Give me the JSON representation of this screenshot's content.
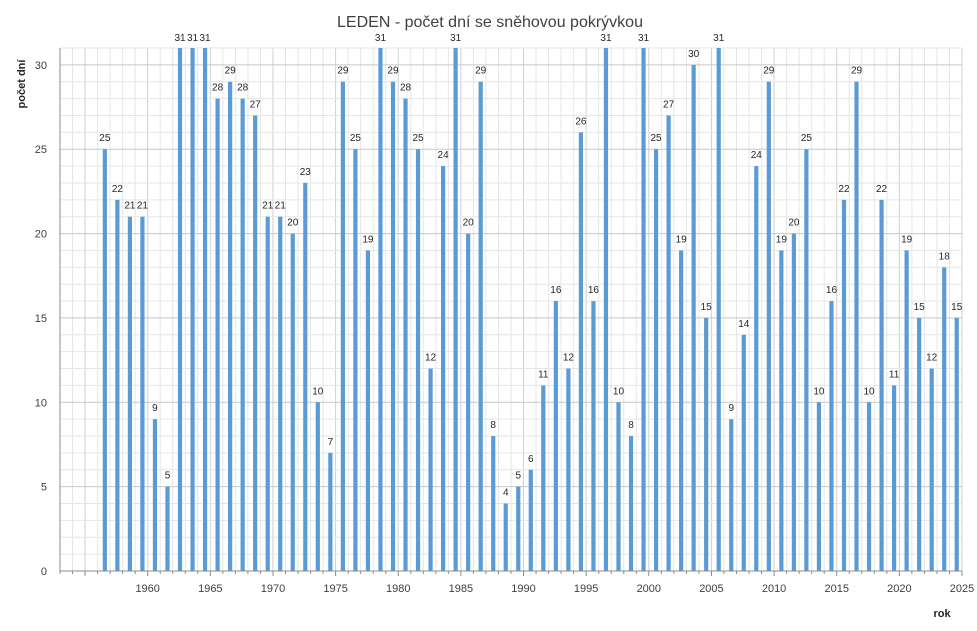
{
  "chart_data": {
    "type": "bar",
    "title": "LEDEN - počet dní se sněhovou pokrývkou",
    "xlabel": "rok",
    "ylabel": "počet dní",
    "ylim": [
      0,
      31
    ],
    "xlim": [
      1953,
      2025
    ],
    "y_ticks": [
      0,
      5,
      10,
      15,
      20,
      25,
      30
    ],
    "x_ticks": [
      1960,
      1965,
      1970,
      1975,
      1980,
      1985,
      1990,
      1995,
      2000,
      2005,
      2010,
      2015,
      2020,
      2025
    ],
    "grid": true,
    "legend": "none",
    "bar_color": "#5b9bd5",
    "series": [
      {
        "points": [
          [
            1957,
            25
          ],
          [
            1958,
            22
          ],
          [
            1959,
            21
          ],
          [
            1960,
            21
          ],
          [
            1961,
            9
          ],
          [
            1962,
            5
          ],
          [
            1963,
            31
          ],
          [
            1964,
            31
          ],
          [
            1965,
            31
          ],
          [
            1966,
            28
          ],
          [
            1967,
            29
          ],
          [
            1968,
            28
          ],
          [
            1969,
            27
          ],
          [
            1970,
            21
          ],
          [
            1971,
            21
          ],
          [
            1972,
            20
          ],
          [
            1973,
            23
          ],
          [
            1974,
            10
          ],
          [
            1975,
            7
          ],
          [
            1976,
            29
          ],
          [
            1977,
            25
          ],
          [
            1978,
            19
          ],
          [
            1979,
            31
          ],
          [
            1980,
            29
          ],
          [
            1981,
            28
          ],
          [
            1982,
            25
          ],
          [
            1983,
            12
          ],
          [
            1984,
            24
          ],
          [
            1985,
            31
          ],
          [
            1986,
            20
          ],
          [
            1987,
            29
          ],
          [
            1988,
            8
          ],
          [
            1989,
            4
          ],
          [
            1990,
            5
          ],
          [
            1991,
            6
          ],
          [
            1992,
            11
          ],
          [
            1993,
            16
          ],
          [
            1994,
            12
          ],
          [
            1995,
            26
          ],
          [
            1996,
            16
          ],
          [
            1997,
            31
          ],
          [
            1998,
            10
          ],
          [
            1999,
            8
          ],
          [
            2000,
            31
          ],
          [
            2001,
            25
          ],
          [
            2002,
            27
          ],
          [
            2003,
            19
          ],
          [
            2004,
            30
          ],
          [
            2005,
            15
          ],
          [
            2006,
            31
          ],
          [
            2007,
            9
          ],
          [
            2008,
            14
          ],
          [
            2009,
            24
          ],
          [
            2010,
            29
          ],
          [
            2011,
            19
          ],
          [
            2012,
            20
          ],
          [
            2013,
            25
          ],
          [
            2014,
            10
          ],
          [
            2015,
            16
          ],
          [
            2016,
            22
          ],
          [
            2017,
            29
          ],
          [
            2018,
            10
          ],
          [
            2019,
            22
          ],
          [
            2020,
            11
          ],
          [
            2021,
            19
          ],
          [
            2022,
            15
          ],
          [
            2023,
            12
          ],
          [
            2024,
            18
          ],
          [
            2025,
            15
          ]
        ]
      }
    ]
  }
}
